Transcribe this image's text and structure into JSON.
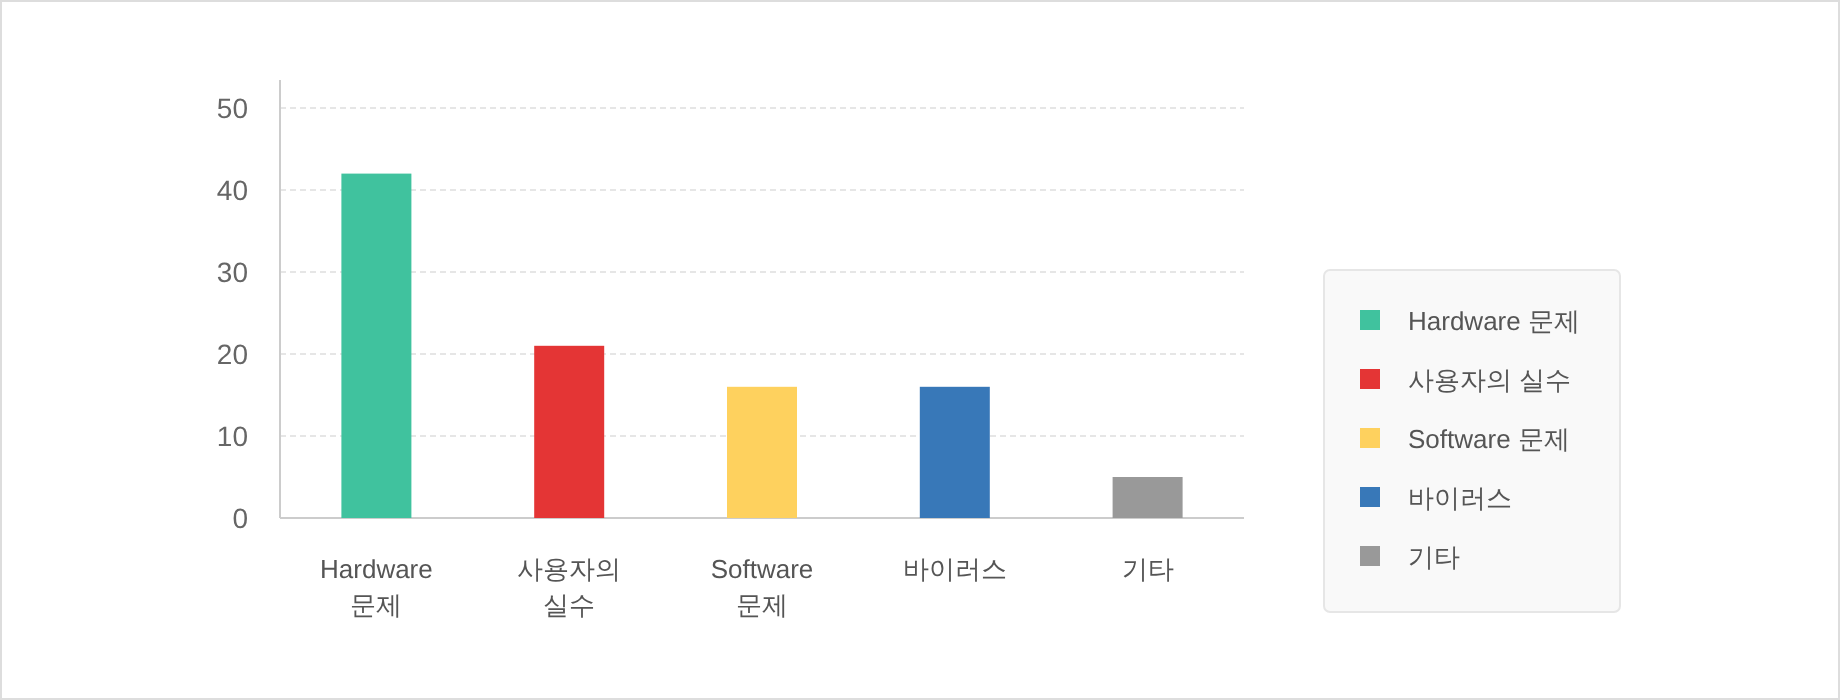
{
  "chart_data": {
    "type": "bar",
    "categories": [
      "Hardware 문제",
      "사용자의 실수",
      "Software 문제",
      "바이러스",
      "기타"
    ],
    "series": [
      {
        "name": "Hardware 문제",
        "color": "#40c29e",
        "values": [
          42,
          null,
          null,
          null,
          null
        ]
      },
      {
        "name": "사용자의 실수",
        "color": "#e43535",
        "values": [
          null,
          21,
          null,
          null,
          null
        ]
      },
      {
        "name": "Software 문제",
        "color": "#fed15e",
        "values": [
          null,
          null,
          16,
          null,
          null
        ]
      },
      {
        "name": "바이러스",
        "color": "#3878b8",
        "values": [
          null,
          null,
          null,
          16,
          null
        ]
      },
      {
        "name": "기타",
        "color": "#999999",
        "values": [
          null,
          null,
          null,
          null,
          5
        ]
      }
    ],
    "ylim": [
      0,
      50
    ],
    "yticks": [
      0,
      10,
      20,
      30,
      40,
      50
    ],
    "grid": "y",
    "legend": "right"
  }
}
